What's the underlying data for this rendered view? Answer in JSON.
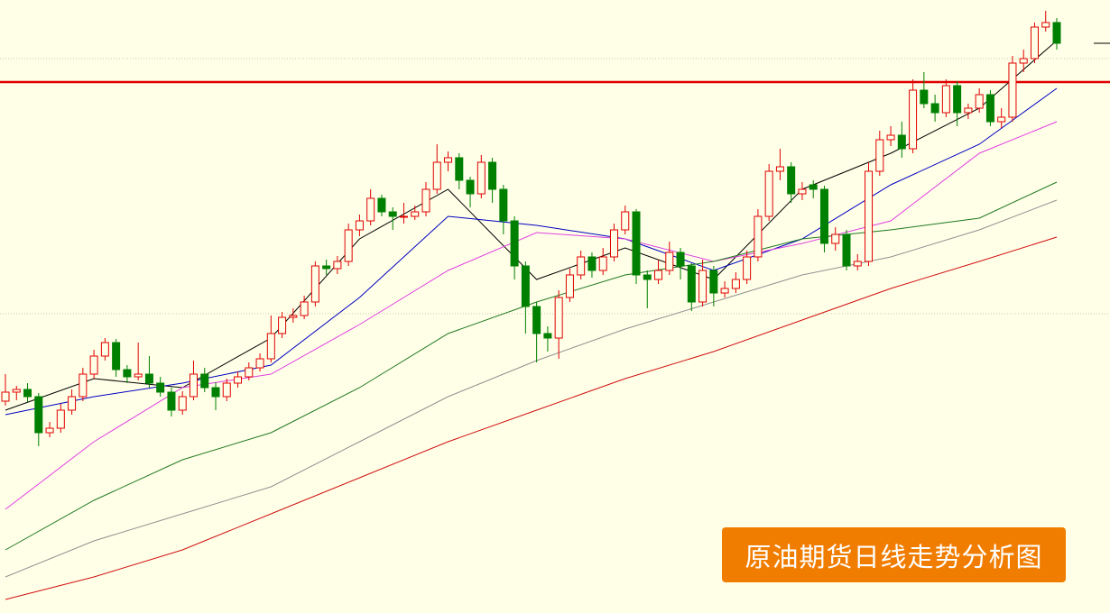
{
  "chart_data": {
    "type": "candlestick",
    "title": "原油期货日线走势分析图",
    "up_color": "#e00000",
    "down_color": "#008000",
    "ylim": [
      0,
      680
    ],
    "yticks": [
      332,
      615
    ],
    "grid": true,
    "reference_line": {
      "value": 589,
      "color": "#e00000"
    },
    "candles": [
      [
        235,
        265,
        230,
        245
      ],
      [
        245,
        252,
        236,
        248
      ],
      [
        248,
        255,
        234,
        240
      ],
      [
        240,
        244,
        185,
        200
      ],
      [
        200,
        212,
        195,
        205
      ],
      [
        205,
        232,
        200,
        225
      ],
      [
        225,
        248,
        220,
        240
      ],
      [
        240,
        272,
        235,
        265
      ],
      [
        265,
        292,
        260,
        285
      ],
      [
        285,
        305,
        280,
        300
      ],
      [
        300,
        304,
        262,
        270
      ],
      [
        270,
        275,
        255,
        262
      ],
      [
        262,
        300,
        258,
        265
      ],
      [
        265,
        285,
        250,
        255
      ],
      [
        255,
        262,
        240,
        245
      ],
      [
        245,
        250,
        218,
        225
      ],
      [
        225,
        246,
        220,
        240
      ],
      [
        240,
        280,
        236,
        265
      ],
      [
        265,
        272,
        245,
        250
      ],
      [
        250,
        256,
        225,
        240
      ],
      [
        240,
        260,
        235,
        255
      ],
      [
        255,
        268,
        250,
        262
      ],
      [
        262,
        278,
        258,
        272
      ],
      [
        272,
        288,
        268,
        282
      ],
      [
        282,
        330,
        278,
        310
      ],
      [
        310,
        334,
        305,
        328
      ],
      [
        328,
        338,
        322,
        330
      ],
      [
        330,
        352,
        326,
        345
      ],
      [
        345,
        390,
        340,
        385
      ],
      [
        385,
        392,
        375,
        382
      ],
      [
        382,
        396,
        376,
        390
      ],
      [
        390,
        432,
        385,
        425
      ],
      [
        425,
        442,
        418,
        435
      ],
      [
        435,
        470,
        430,
        460
      ],
      [
        460,
        464,
        440,
        445
      ],
      [
        445,
        450,
        425,
        440
      ],
      [
        440,
        455,
        432,
        440
      ],
      [
        440,
        452,
        436,
        445
      ],
      [
        445,
        478,
        440,
        470
      ],
      [
        470,
        520,
        465,
        500
      ],
      [
        500,
        512,
        490,
        505
      ],
      [
        505,
        510,
        470,
        480
      ],
      [
        480,
        484,
        450,
        465
      ],
      [
        465,
        508,
        460,
        500
      ],
      [
        500,
        505,
        455,
        470
      ],
      [
        470,
        475,
        420,
        435
      ],
      [
        435,
        440,
        370,
        385
      ],
      [
        385,
        390,
        310,
        340
      ],
      [
        340,
        345,
        278,
        310
      ],
      [
        310,
        318,
        290,
        305
      ],
      [
        305,
        358,
        282,
        350
      ],
      [
        350,
        382,
        345,
        375
      ],
      [
        375,
        402,
        370,
        395
      ],
      [
        395,
        400,
        372,
        380
      ],
      [
        380,
        405,
        375,
        395
      ],
      [
        395,
        432,
        390,
        425
      ],
      [
        425,
        452,
        420,
        445
      ],
      [
        445,
        448,
        365,
        375
      ],
      [
        375,
        380,
        338,
        370
      ],
      [
        370,
        392,
        365,
        380
      ],
      [
        380,
        412,
        375,
        400
      ],
      [
        400,
        405,
        370,
        385
      ],
      [
        385,
        388,
        335,
        345
      ],
      [
        345,
        392,
        340,
        380
      ],
      [
        380,
        385,
        340,
        355
      ],
      [
        355,
        368,
        350,
        360
      ],
      [
        360,
        378,
        355,
        370
      ],
      [
        370,
        402,
        365,
        395
      ],
      [
        395,
        448,
        390,
        440
      ],
      [
        440,
        498,
        435,
        490
      ],
      [
        490,
        515,
        480,
        495
      ],
      [
        495,
        500,
        455,
        465
      ],
      [
        465,
        478,
        458,
        470
      ],
      [
        475,
        480,
        460,
        470
      ],
      [
        470,
        474,
        400,
        410
      ],
      [
        410,
        428,
        402,
        420
      ],
      [
        420,
        425,
        380,
        385
      ],
      [
        385,
        398,
        380,
        390
      ],
      [
        390,
        500,
        385,
        490
      ],
      [
        490,
        535,
        485,
        525
      ],
      [
        525,
        540,
        518,
        530
      ],
      [
        530,
        545,
        505,
        515
      ],
      [
        515,
        592,
        510,
        580
      ],
      [
        580,
        600,
        560,
        565
      ],
      [
        565,
        575,
        545,
        555
      ],
      [
        555,
        592,
        550,
        585
      ],
      [
        585,
        590,
        540,
        555
      ],
      [
        555,
        565,
        548,
        560
      ],
      [
        560,
        582,
        555,
        575
      ],
      [
        575,
        580,
        540,
        545
      ],
      [
        545,
        560,
        538,
        550
      ],
      [
        550,
        618,
        545,
        610
      ],
      [
        610,
        625,
        600,
        615
      ],
      [
        615,
        655,
        610,
        650
      ],
      [
        650,
        668,
        645,
        655
      ],
      [
        655,
        660,
        625,
        632
      ]
    ],
    "series": [
      {
        "color": "#000000",
        "x": [
          0,
          8,
          16,
          24,
          32,
          40,
          48,
          56,
          64,
          72,
          80,
          88,
          95
        ],
        "values": [
          225,
          260,
          250,
          305,
          415,
          470,
          370,
          405,
          370,
          470,
          510,
          560,
          635
        ]
      },
      {
        "color": "#0000c0",
        "x": [
          0,
          8,
          16,
          24,
          32,
          40,
          48,
          56,
          64,
          72,
          80,
          88,
          95
        ],
        "values": [
          220,
          240,
          255,
          275,
          350,
          440,
          430,
          415,
          380,
          415,
          475,
          520,
          582
        ]
      },
      {
        "color": "#e040e0",
        "x": [
          0,
          8,
          16,
          24,
          32,
          40,
          48,
          56,
          64,
          72,
          80,
          88,
          95
        ],
        "values": [
          115,
          190,
          250,
          265,
          320,
          380,
          422,
          415,
          390,
          410,
          435,
          510,
          545
        ]
      },
      {
        "color": "#207820",
        "x": [
          0,
          8,
          16,
          24,
          32,
          40,
          48,
          56,
          64,
          72,
          80,
          88,
          95
        ],
        "values": [
          70,
          125,
          170,
          200,
          250,
          310,
          345,
          375,
          390,
          415,
          425,
          438,
          478
        ]
      },
      {
        "color": "#909090",
        "x": [
          0,
          8,
          16,
          24,
          32,
          40,
          48,
          56,
          64,
          72,
          80,
          88,
          95
        ],
        "values": [
          40,
          80,
          110,
          140,
          190,
          240,
          280,
          315,
          345,
          375,
          395,
          425,
          458
        ]
      },
      {
        "color": "#d01010",
        "x": [
          0,
          8,
          16,
          24,
          32,
          40,
          48,
          56,
          64,
          72,
          80,
          88,
          95
        ],
        "values": [
          15,
          40,
          70,
          110,
          150,
          190,
          225,
          260,
          290,
          325,
          360,
          390,
          417
        ]
      }
    ]
  }
}
